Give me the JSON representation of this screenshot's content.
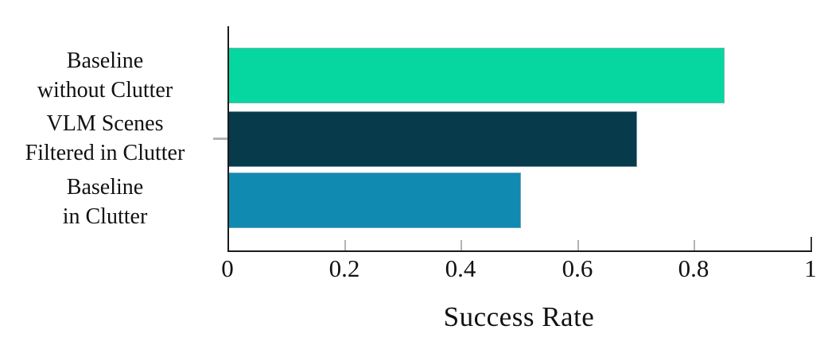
{
  "chart_data": {
    "type": "bar",
    "orientation": "horizontal",
    "title": "",
    "xlabel": "Success Rate",
    "ylabel": "",
    "xlim": [
      0,
      1
    ],
    "xticks": [
      0,
      0.2,
      0.4,
      0.6,
      0.8,
      1
    ],
    "xtick_labels": [
      "0",
      "0.2",
      "0.4",
      "0.6",
      "0.8",
      "1"
    ],
    "categories": [
      "Baseline without Clutter",
      "VLM Scenes Filtered in Clutter",
      "Baseline in Clutter"
    ],
    "category_lines": [
      [
        "Baseline",
        "without Clutter"
      ],
      [
        "VLM Scenes",
        "Filtered in Clutter"
      ],
      [
        "Baseline",
        "in Clutter"
      ]
    ],
    "values": [
      0.85,
      0.7,
      0.5
    ],
    "series": [
      {
        "name": "Success Rate",
        "values": [
          0.85,
          0.7,
          0.5
        ]
      }
    ],
    "bar_colors": [
      "#06d6a0",
      "#073b4c",
      "#118ab2"
    ],
    "axis_color": "#1a1a1a",
    "tick_color": "#b3b3b3",
    "end_tick_color": "#3a3a3a",
    "grid": false,
    "legend": false
  }
}
